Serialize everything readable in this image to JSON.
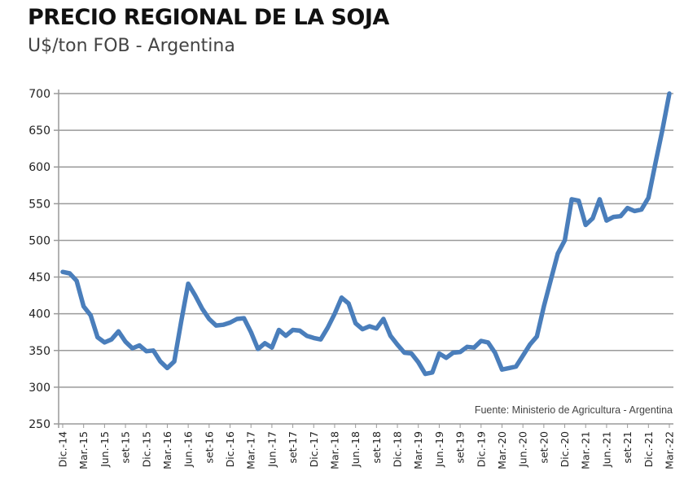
{
  "chart_data": {
    "type": "line",
    "title": "PRECIO REGIONAL DE LA SOJA",
    "subtitle": "U$/ton FOB - Argentina",
    "source": "Fuente: Ministerio de Agricultura - Argentina",
    "ylim": [
      250,
      700
    ],
    "yticks": [
      250,
      300,
      350,
      400,
      450,
      500,
      550,
      600,
      650,
      700
    ],
    "grid": true,
    "line_color": "#4a7ebb",
    "xtick_labels": [
      "Dic.-14",
      "Mar.-15",
      "Jun.-15",
      "set-15",
      "Dic.-15",
      "Mar.-16",
      "Jun.-16",
      "set-16",
      "Dic.-16",
      "Mar.-17",
      "Jun.-17",
      "set-17",
      "Dic.-17",
      "Mar.-18",
      "Jun.-18",
      "set-18",
      "Dic.-18",
      "Mar.-19",
      "Jun.-19",
      "set-19",
      "Dic.-19",
      "Mar.-20",
      "Jun.-20",
      "set-20",
      "Dic.-20",
      "Mar.-21",
      "Jun.-21",
      "set-21",
      "Dic.-21",
      "Mar.-22"
    ],
    "series": [
      {
        "values": [
          457,
          455,
          445,
          410,
          398,
          368,
          361,
          365,
          376,
          362,
          353,
          357,
          349,
          350,
          335,
          326,
          335,
          390,
          441,
          425,
          407,
          393,
          384,
          385,
          388,
          393,
          394,
          375,
          352,
          360,
          354,
          378,
          370,
          378,
          377,
          370,
          367,
          365,
          381,
          400,
          422,
          414,
          387,
          379,
          383,
          380,
          393,
          370,
          358,
          347,
          346,
          334,
          318,
          320,
          346,
          340,
          347,
          348,
          355,
          354,
          363,
          361,
          347,
          324,
          326,
          328,
          343,
          358,
          369,
          410,
          446,
          482,
          500,
          556,
          554,
          521,
          530,
          556,
          527,
          532,
          533,
          544,
          540,
          542,
          558,
          605,
          650,
          700
        ]
      }
    ]
  }
}
